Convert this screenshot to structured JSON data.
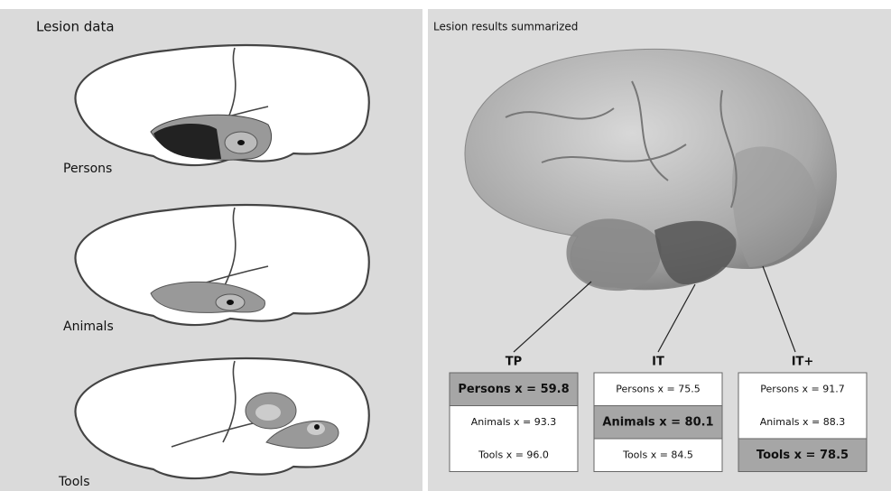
{
  "left": {
    "title": "Lesion data",
    "brains": [
      {
        "label": "Persons"
      },
      {
        "label": "Animals"
      },
      {
        "label": "Tools"
      }
    ]
  },
  "right": {
    "title": "Lesion results summarized",
    "regions": [
      {
        "name": "TP",
        "rows": [
          "Persons x = 59.8",
          "Animals x = 93.3",
          "Tools x = 96.0"
        ],
        "highlight": 0
      },
      {
        "name": "IT",
        "rows": [
          "Persons x = 75.5",
          "Animals x = 80.1",
          "Tools x = 84.5"
        ],
        "highlight": 1
      },
      {
        "name": "IT+",
        "rows": [
          "Persons x = 91.7",
          "Animals x = 88.3",
          "Tools x = 78.5"
        ],
        "highlight": 2
      }
    ]
  }
}
